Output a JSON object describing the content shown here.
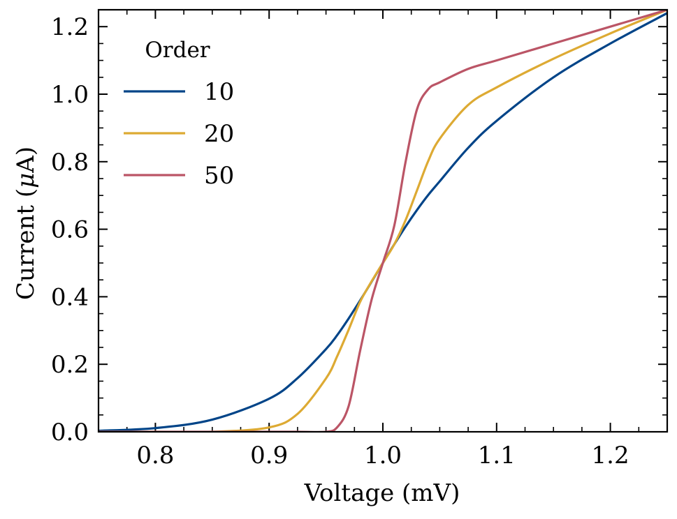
{
  "chart_data": {
    "type": "line",
    "title": "",
    "xlabel": "Voltage (mV)",
    "ylabel_prefix": "Current (",
    "ylabel_mu": "μ",
    "ylabel_suffix": "A)",
    "xlim": [
      0.75,
      1.25
    ],
    "ylim": [
      0.0,
      1.25
    ],
    "xticks": [
      0.8,
      0.9,
      1.0,
      1.1,
      1.2
    ],
    "xtick_labels": [
      "0.8",
      "0.9",
      "1.0",
      "1.1",
      "1.2"
    ],
    "yticks": [
      0.0,
      0.2,
      0.4,
      0.6,
      0.8,
      1.0,
      1.2
    ],
    "ytick_labels": [
      "0.0",
      "0.2",
      "0.4",
      "0.6",
      "0.8",
      "1.0",
      "1.2"
    ],
    "grid": false,
    "legend": {
      "title": "Order",
      "placement": "upper-left"
    },
    "x": [
      0.75,
      0.8,
      0.85,
      0.9,
      0.925,
      0.95,
      0.96,
      0.97,
      0.98,
      0.99,
      1.0,
      1.01,
      1.02,
      1.03,
      1.04,
      1.05,
      1.075,
      1.1,
      1.15,
      1.2,
      1.25
    ],
    "series": [
      {
        "name": "10",
        "color": "#004488",
        "values": [
          0.003,
          0.011,
          0.036,
          0.098,
          0.159,
          0.245,
          0.287,
          0.336,
          0.389,
          0.444,
          0.5,
          0.555,
          0.608,
          0.657,
          0.702,
          0.742,
          0.841,
          0.921,
          1.05,
          1.15,
          1.24
        ]
      },
      {
        "name": "20",
        "color": "#DDAA33",
        "values": [
          0.0,
          0.0,
          0.0,
          0.013,
          0.053,
          0.158,
          0.225,
          0.303,
          0.385,
          0.445,
          0.5,
          0.555,
          0.627,
          0.715,
          0.803,
          0.868,
          0.968,
          1.02,
          1.105,
          1.18,
          1.25
        ]
      },
      {
        "name": "50",
        "color": "#BB5566",
        "values": [
          0.0,
          0.0,
          0.0,
          0.0,
          0.0,
          0.0,
          0.014,
          0.077,
          0.24,
          0.39,
          0.5,
          0.61,
          0.8,
          0.955,
          1.015,
          1.035,
          1.075,
          1.1,
          1.15,
          1.2,
          1.25
        ]
      }
    ]
  }
}
